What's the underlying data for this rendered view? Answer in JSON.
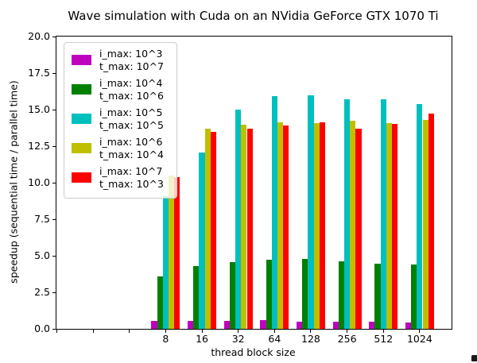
{
  "chart_data": {
    "type": "bar",
    "title": "Wave simulation with Cuda on an NVidia GeForce GTX 1070 Ti",
    "xlabel": "thread block size",
    "ylabel": "speedup (sequential time / parallel time)",
    "categories": [
      "8",
      "16",
      "32",
      "64",
      "128",
      "256",
      "512",
      "1024"
    ],
    "series": [
      {
        "name": "i_max: 10^3, t_max: 10^7",
        "color": "#bf00bf",
        "values": [
          0.55,
          0.55,
          0.55,
          0.6,
          0.5,
          0.5,
          0.5,
          0.45
        ]
      },
      {
        "name": "i_max: 10^4, t_max: 10^6",
        "color": "#008000",
        "values": [
          3.6,
          4.3,
          4.55,
          4.75,
          4.8,
          4.6,
          4.45,
          4.4
        ]
      },
      {
        "name": "i_max: 10^5, t_max: 10^5",
        "color": "#00bfbf",
        "values": [
          9.05,
          12.05,
          15.0,
          15.95,
          16.0,
          15.7,
          15.7,
          15.4
        ]
      },
      {
        "name": "i_max: 10^6, t_max: 10^4",
        "color": "#bfbf00",
        "values": [
          10.5,
          13.7,
          13.95,
          14.15,
          14.05,
          14.25,
          14.05,
          14.3
        ]
      },
      {
        "name": "i_max: 10^7, t_max: 10^3",
        "color": "#ff0000",
        "values": [
          10.4,
          13.5,
          13.7,
          13.9,
          14.15,
          13.7,
          14.0,
          14.75
        ]
      }
    ],
    "ylim": [
      0,
      20
    ],
    "yticks": [
      "0.0",
      "2.5",
      "5.0",
      "7.5",
      "10.0",
      "12.5",
      "15.0",
      "17.5",
      "20.0"
    ],
    "unlabeled_left_ticks": 3,
    "grid": false,
    "legend_position": "upper left"
  },
  "legend": {
    "items": [
      {
        "line1": "i_max: 10^3",
        "line2": "t_max: 10^7",
        "color": "#bf00bf"
      },
      {
        "line1": "i_max: 10^4",
        "line2": "t_max: 10^6",
        "color": "#008000"
      },
      {
        "line1": "i_max: 10^5",
        "line2": "t_max: 10^5",
        "color": "#00bfbf"
      },
      {
        "line1": "i_max: 10^6",
        "line2": "t_max: 10^4",
        "color": "#bfbf00"
      },
      {
        "line1": "i_max: 10^7",
        "line2": "t_max: 10^3",
        "color": "#ff0000"
      }
    ]
  }
}
